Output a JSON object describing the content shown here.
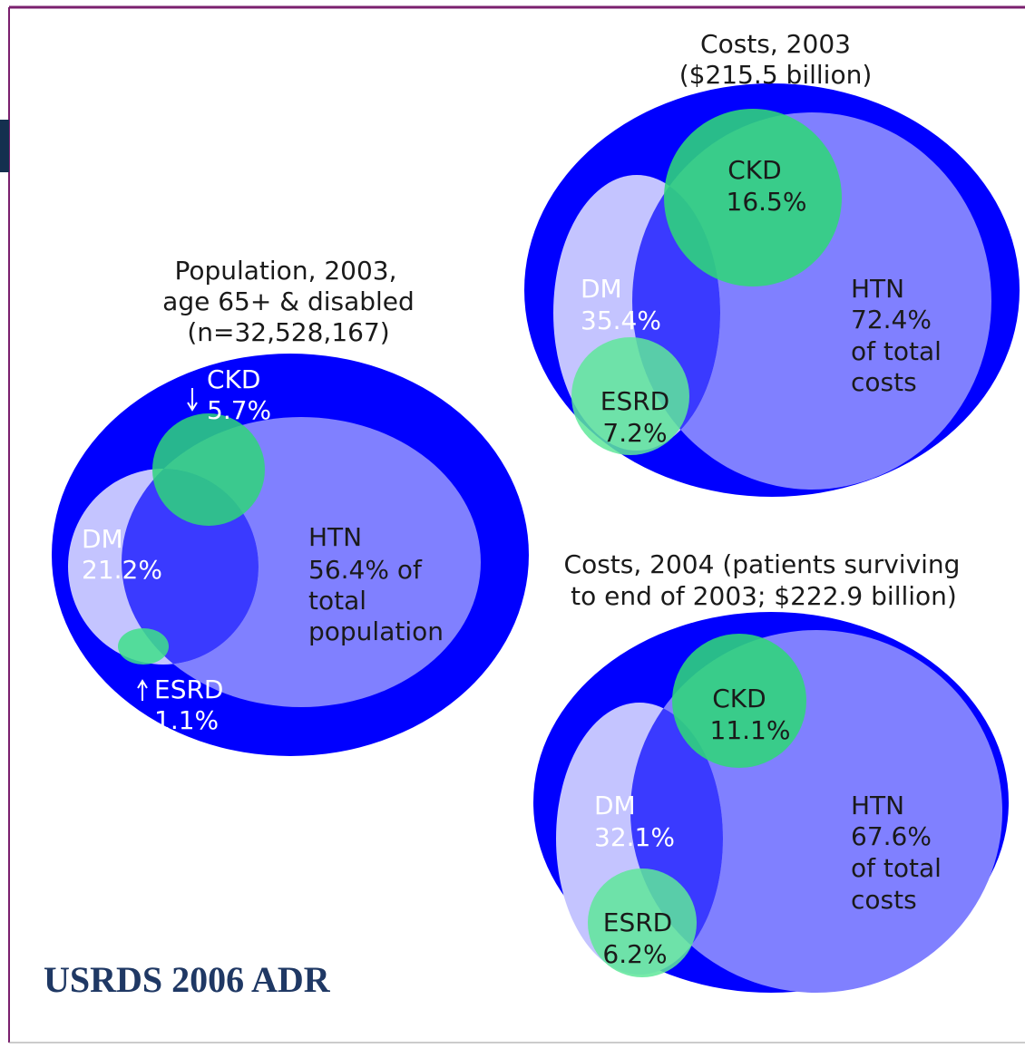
{
  "diagrams": [
    {
      "title": [
        "Population, 2003,",
        "age 65+ & disabled",
        "(n=32,528,167)"
      ],
      "sets": [
        {
          "lines": [
            "CKD",
            "5.7%"
          ]
        },
        {
          "lines": [
            "DM",
            "21.2%"
          ]
        },
        {
          "lines": [
            "HTN",
            "56.4% of",
            "total",
            "population"
          ]
        },
        {
          "lines": [
            "ESRD",
            "1.1%"
          ]
        }
      ]
    },
    {
      "title": [
        "Costs, 2003",
        "($215.5 billion)"
      ],
      "sets": [
        {
          "lines": [
            "CKD",
            "16.5%"
          ]
        },
        {
          "lines": [
            "DM",
            "35.4%"
          ]
        },
        {
          "lines": [
            "HTN",
            "72.4%",
            "of total",
            "costs"
          ]
        },
        {
          "lines": [
            "ESRD",
            "7.2%"
          ]
        }
      ]
    },
    {
      "title": [
        "Costs, 2004 (patients surviving",
        "to end of 2003; $222.9 billion)"
      ],
      "sets": [
        {
          "lines": [
            "CKD",
            "11.1%"
          ]
        },
        {
          "lines": [
            "DM",
            "32.1%"
          ]
        },
        {
          "lines": [
            "HTN",
            "67.6%",
            "of total",
            "costs"
          ]
        },
        {
          "lines": [
            "ESRD",
            "6.2%"
          ]
        }
      ]
    }
  ],
  "footer": "USRDS 2006 ADR"
}
